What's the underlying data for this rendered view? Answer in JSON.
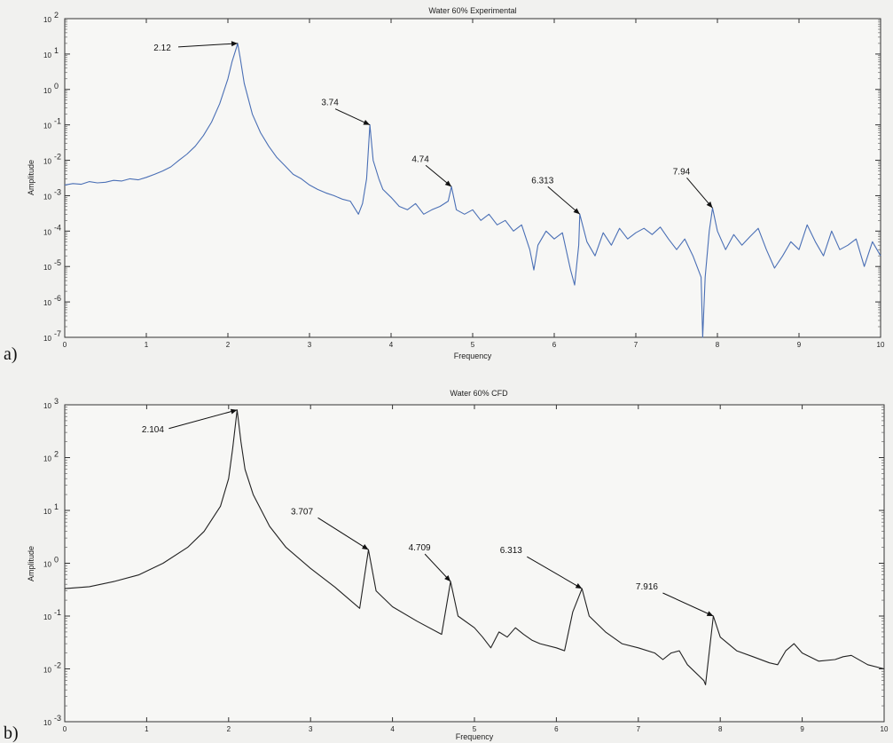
{
  "chart_data": [
    {
      "type": "line",
      "panel_label": "a)",
      "title": "Water 60% Experimental",
      "xlabel": "Frequency",
      "ylabel": "Amplitude",
      "xlim": [
        0,
        10
      ],
      "ylim_exp": [
        -7,
        2
      ],
      "yscale": "log",
      "grid": false,
      "xticks": [
        "0",
        "1",
        "2",
        "3",
        "4",
        "5",
        "6",
        "7",
        "8",
        "9",
        "10"
      ],
      "yticks_exp": [
        "-7",
        "-6",
        "-5",
        "-4",
        "-3",
        "-2",
        "-1",
        "0",
        "1",
        "2"
      ],
      "line_color": "#4a6fb5",
      "annotations": [
        {
          "text": "2.12",
          "x": 2.12,
          "y": 20
        },
        {
          "text": "3.74",
          "x": 3.74,
          "y": 0.1
        },
        {
          "text": "4.74",
          "x": 4.74,
          "y": 0.0018
        },
        {
          "text": "6.313",
          "x": 6.313,
          "y": 0.0003
        },
        {
          "text": "7.94",
          "x": 7.94,
          "y": 0.00045
        }
      ],
      "series": [
        {
          "x": [
            0,
            0.1,
            0.2,
            0.3,
            0.4,
            0.5,
            0.6,
            0.7,
            0.8,
            0.9,
            1.0,
            1.1,
            1.2,
            1.3,
            1.4,
            1.5,
            1.6,
            1.7,
            1.8,
            1.9,
            2.0,
            2.05,
            2.1,
            2.12,
            2.15,
            2.2,
            2.3,
            2.4,
            2.5,
            2.6,
            2.7,
            2.8,
            2.9,
            3.0,
            3.1,
            3.2,
            3.3,
            3.4,
            3.5,
            3.6,
            3.65,
            3.7,
            3.74,
            3.78,
            3.85,
            3.9,
            4.0,
            4.1,
            4.2,
            4.3,
            4.4,
            4.5,
            4.6,
            4.7,
            4.74,
            4.8,
            4.9,
            5.0,
            5.1,
            5.2,
            5.3,
            5.4,
            5.5,
            5.6,
            5.7,
            5.75,
            5.8,
            5.9,
            6.0,
            6.1,
            6.2,
            6.25,
            6.3,
            6.313,
            6.4,
            6.5,
            6.6,
            6.7,
            6.8,
            6.9,
            7.0,
            7.1,
            7.2,
            7.3,
            7.4,
            7.5,
            7.6,
            7.7,
            7.8,
            7.82,
            7.85,
            7.9,
            7.94,
            8.0,
            8.1,
            8.2,
            8.3,
            8.4,
            8.5,
            8.6,
            8.7,
            8.8,
            8.9,
            9.0,
            9.1,
            9.2,
            9.3,
            9.4,
            9.5,
            9.6,
            9.7,
            9.8,
            9.9,
            10.0
          ],
          "y": [
            0.002,
            0.0022,
            0.0021,
            0.0025,
            0.0023,
            0.0024,
            0.0027,
            0.0026,
            0.003,
            0.0028,
            0.0033,
            0.004,
            0.005,
            0.0065,
            0.01,
            0.015,
            0.025,
            0.05,
            0.12,
            0.4,
            2.0,
            6.0,
            14.0,
            20.0,
            8.0,
            1.5,
            0.2,
            0.06,
            0.025,
            0.012,
            0.007,
            0.004,
            0.003,
            0.002,
            0.0015,
            0.0012,
            0.001,
            0.0008,
            0.0007,
            0.0003,
            0.0006,
            0.003,
            0.1,
            0.01,
            0.003,
            0.0015,
            0.0009,
            0.0005,
            0.0004,
            0.0006,
            0.0003,
            0.0004,
            0.0005,
            0.0007,
            0.0018,
            0.0004,
            0.0003,
            0.0004,
            0.0002,
            0.0003,
            0.00015,
            0.0002,
            0.0001,
            0.00015,
            3e-05,
            8e-06,
            4e-05,
            0.0001,
            6e-05,
            9e-05,
            8e-06,
            3e-06,
            4e-05,
            0.0003,
            5e-05,
            2e-05,
            9e-05,
            4e-05,
            0.00012,
            6e-05,
            9e-05,
            0.00012,
            8e-05,
            0.00013,
            6e-05,
            3e-05,
            6e-05,
            2e-05,
            5e-06,
            1e-07,
            5e-06,
            0.0001,
            0.00045,
            0.0001,
            3e-05,
            8e-05,
            4e-05,
            7e-05,
            0.00012,
            3e-05,
            9e-06,
            2e-05,
            5e-05,
            3e-05,
            0.00015,
            5e-05,
            2e-05,
            0.0001,
            3e-05,
            4e-05,
            6e-05,
            1e-05,
            5e-05,
            2e-05
          ]
        }
      ]
    },
    {
      "type": "line",
      "panel_label": "b)",
      "title": "Water 60% CFD",
      "xlabel": "Frequency",
      "ylabel": "Amplitude",
      "xlim": [
        0,
        10
      ],
      "ylim_exp": [
        -3,
        3
      ],
      "yscale": "log",
      "grid": false,
      "xticks": [
        "0",
        "1",
        "2",
        "3",
        "4",
        "5",
        "6",
        "7",
        "8",
        "9",
        "10"
      ],
      "yticks_exp": [
        "-3",
        "-2",
        "-1",
        "0",
        "1",
        "2",
        "3"
      ],
      "line_color": "#222222",
      "annotations": [
        {
          "text": "2.104",
          "x": 2.104,
          "y": 800
        },
        {
          "text": "3.707",
          "x": 3.707,
          "y": 1.8
        },
        {
          "text": "4.709",
          "x": 4.709,
          "y": 0.45
        },
        {
          "text": "6.313",
          "x": 6.313,
          "y": 0.33
        },
        {
          "text": "7.916",
          "x": 7.916,
          "y": 0.1
        }
      ],
      "series": [
        {
          "x": [
            0,
            0.3,
            0.6,
            0.9,
            1.2,
            1.5,
            1.7,
            1.9,
            2.0,
            2.05,
            2.104,
            2.15,
            2.2,
            2.3,
            2.5,
            2.7,
            3.0,
            3.3,
            3.6,
            3.707,
            3.8,
            4.0,
            4.3,
            4.6,
            4.709,
            4.8,
            5.0,
            5.1,
            5.2,
            5.3,
            5.4,
            5.5,
            5.6,
            5.7,
            5.8,
            6.0,
            6.1,
            6.2,
            6.313,
            6.4,
            6.6,
            6.8,
            7.0,
            7.2,
            7.3,
            7.4,
            7.5,
            7.6,
            7.8,
            7.82,
            7.916,
            8.0,
            8.2,
            8.4,
            8.6,
            8.7,
            8.8,
            8.9,
            9.0,
            9.2,
            9.4,
            9.5,
            9.6,
            9.8,
            10.0
          ],
          "y": [
            0.33,
            0.36,
            0.45,
            0.6,
            1.0,
            2.0,
            4.0,
            12.0,
            40.0,
            150.0,
            800.0,
            200.0,
            60.0,
            20.0,
            5.0,
            2.0,
            0.8,
            0.35,
            0.14,
            1.8,
            0.3,
            0.15,
            0.08,
            0.045,
            0.45,
            0.1,
            0.06,
            0.04,
            0.025,
            0.05,
            0.04,
            0.06,
            0.045,
            0.035,
            0.03,
            0.025,
            0.022,
            0.12,
            0.33,
            0.1,
            0.05,
            0.03,
            0.025,
            0.02,
            0.015,
            0.02,
            0.022,
            0.012,
            0.006,
            0.005,
            0.1,
            0.04,
            0.022,
            0.017,
            0.013,
            0.012,
            0.022,
            0.03,
            0.02,
            0.014,
            0.015,
            0.017,
            0.018,
            0.012,
            0.01
          ]
        }
      ]
    }
  ]
}
